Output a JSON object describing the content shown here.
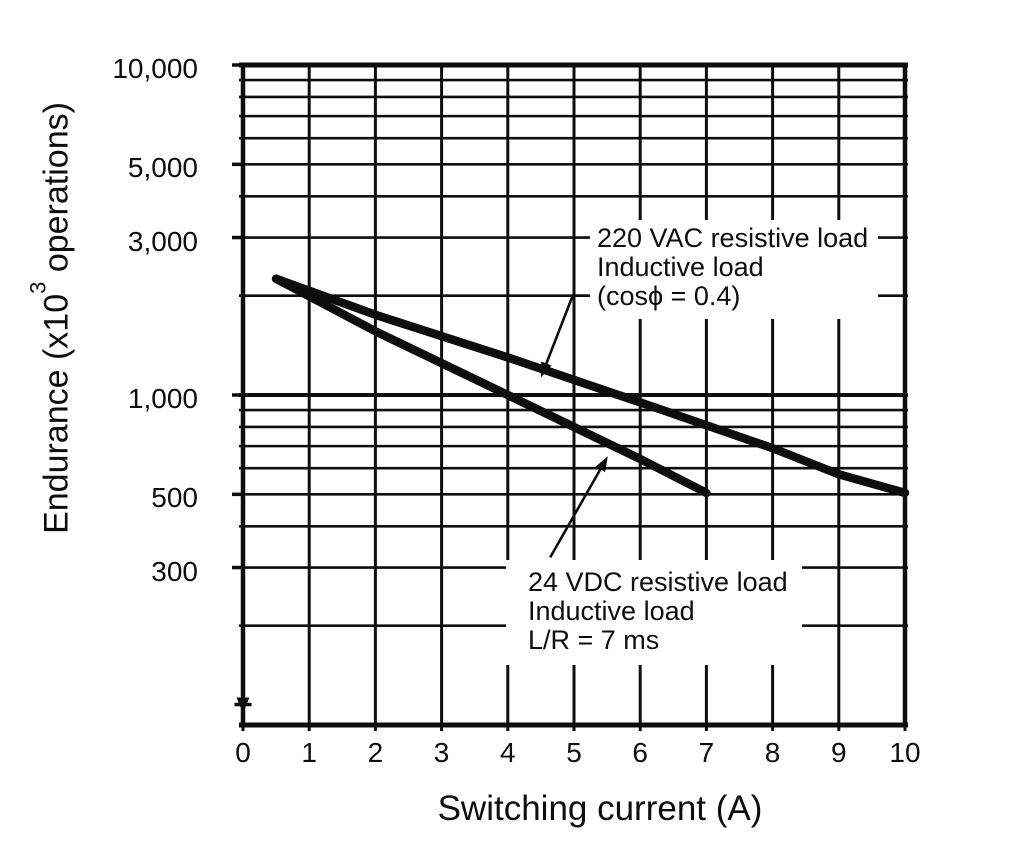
{
  "page": {
    "background": "#ffffff",
    "ink": "#0e0e0e"
  },
  "chart_data": {
    "type": "line",
    "title": "",
    "xlabel": "Switching current (A)",
    "ylabel": "Endurance (x10³ operations)",
    "ylabel_rich": {
      "pre": "Endurance (x10",
      "sup": "3",
      "post": " operations)"
    },
    "x_axis": {
      "scale": "linear",
      "min": 0,
      "max": 10,
      "ticks": [
        {
          "v": 0,
          "label": "0"
        },
        {
          "v": 1,
          "label": "1"
        },
        {
          "v": 2,
          "label": "2"
        },
        {
          "v": 3,
          "label": "3"
        },
        {
          "v": 4,
          "label": "4"
        },
        {
          "v": 5,
          "label": "5"
        },
        {
          "v": 6,
          "label": "6"
        },
        {
          "v": 7,
          "label": "7"
        },
        {
          "v": 8,
          "label": "8"
        },
        {
          "v": 9,
          "label": "9"
        },
        {
          "v": 10,
          "label": "10"
        }
      ]
    },
    "y_axis": {
      "scale": "log",
      "min": 100,
      "max": 10000,
      "ticks": [
        {
          "v": 10000,
          "label": "10,000"
        },
        {
          "v": 5000,
          "label": "5,000"
        },
        {
          "v": 3000,
          "label": "3,000"
        },
        {
          "v": 1000,
          "label": "1,000"
        },
        {
          "v": 500,
          "label": "500"
        },
        {
          "v": 300,
          "label": "300"
        }
      ]
    },
    "grid": true,
    "legend_position": "annotations-on-plot",
    "series": [
      {
        "id": "220vac",
        "name": "220 VAC resistive load / Inductive load (cosϕ = 0.4)",
        "points": [
          [
            0.5,
            2250
          ],
          [
            2,
            1750
          ],
          [
            4,
            1300
          ],
          [
            6,
            950
          ],
          [
            8,
            690
          ],
          [
            9,
            575
          ],
          [
            10,
            505
          ]
        ]
      },
      {
        "id": "24vdc",
        "name": "24 VDC resistive load / Inductive load (L/R = 7 ms)",
        "points": [
          [
            0.5,
            2250
          ],
          [
            2,
            1560
          ],
          [
            4,
            1000
          ],
          [
            6,
            640
          ],
          [
            7,
            505
          ]
        ]
      }
    ],
    "annotations": [
      {
        "id": "220vac",
        "lines": [
          "220 VAC resistive load",
          "Inductive load",
          "(cosϕ = 0.4)"
        ],
        "leader": [
          [
            5.21,
            2000
          ],
          [
            4.98,
            2000
          ],
          [
            4.5,
            1130
          ]
        ]
      },
      {
        "id": "24vdc",
        "lines": [
          "24 VDC resistive load",
          "Inductive load",
          "L/R = 7 ms"
        ],
        "leader": [
          [
            4.64,
            322
          ],
          [
            5.51,
            652
          ]
        ]
      }
    ]
  }
}
